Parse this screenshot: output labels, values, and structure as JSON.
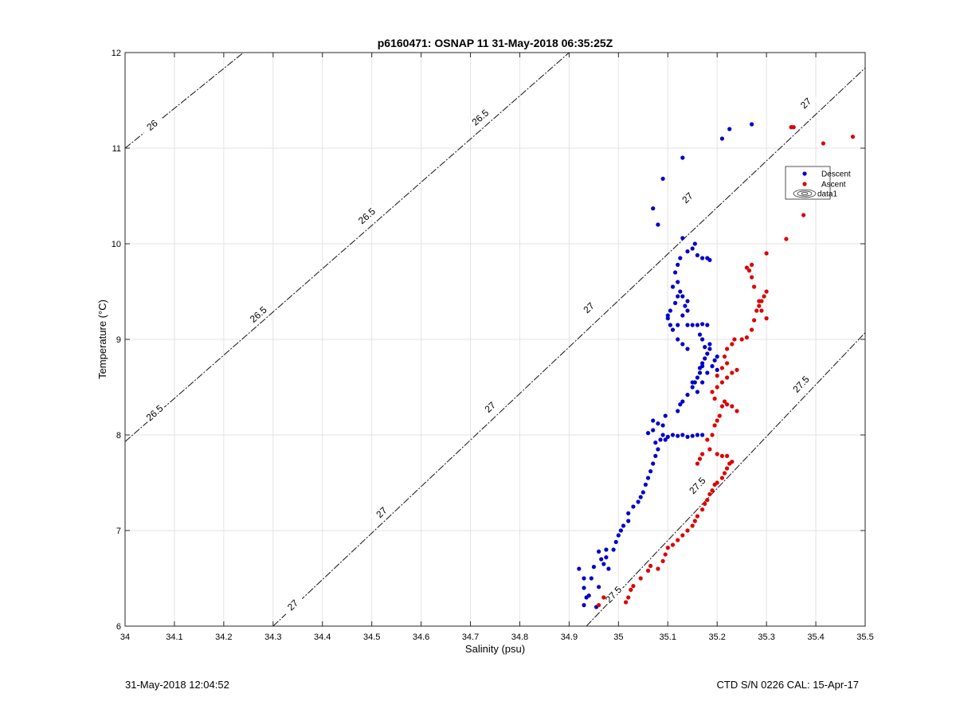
{
  "chart_data": {
    "type": "scatter",
    "title": "p6160471: OSNAP 11 31-May-2018 06:35:25Z",
    "xlabel": "Salinity (psu)",
    "ylabel": "Temperature (°C)",
    "xlim": [
      34,
      35.5
    ],
    "ylim": [
      6,
      12
    ],
    "grid": true,
    "x_ticks": [
      "34",
      "34.1",
      "34.2",
      "34.3",
      "34.4",
      "34.5",
      "34.6",
      "34.7",
      "34.8",
      "34.9",
      "35",
      "35.1",
      "35.2",
      "35.3",
      "35.4",
      "35.5"
    ],
    "y_ticks": [
      "6",
      "7",
      "8",
      "9",
      "10",
      "11",
      "12"
    ],
    "legend": {
      "placement": "top-right",
      "entries": [
        "Descent",
        "Ascent",
        "data1"
      ]
    },
    "contours": [
      {
        "label": "26",
        "points": [
          [
            34.0,
            11.0
          ],
          [
            34.24,
            12.0
          ]
        ],
        "label_positions": [
          [
            34.055,
            11.24
          ]
        ]
      },
      {
        "label": "26.5",
        "points": [
          [
            34.0,
            7.93
          ],
          [
            34.9,
            12.0
          ]
        ],
        "label_positions": [
          [
            34.06,
            8.23
          ],
          [
            34.27,
            9.26
          ],
          [
            34.49,
            10.29
          ],
          [
            34.72,
            11.32
          ]
        ]
      },
      {
        "label": "27",
        "points": [
          [
            34.3,
            6.0
          ],
          [
            35.5,
            11.84
          ]
        ],
        "label_positions": [
          [
            34.34,
            6.22
          ],
          [
            34.52,
            7.19
          ],
          [
            34.74,
            8.29
          ],
          [
            34.94,
            9.33
          ],
          [
            35.14,
            10.48
          ],
          [
            35.38,
            11.47
          ]
        ]
      },
      {
        "label": "27.5",
        "points": [
          [
            34.935,
            6.0
          ],
          [
            35.5,
            9.07
          ]
        ],
        "label_positions": [
          [
            34.99,
            6.33
          ],
          [
            35.16,
            7.47
          ],
          [
            35.37,
            8.53
          ]
        ]
      }
    ],
    "series": [
      {
        "name": "Descent",
        "color": "#0000CC",
        "points": [
          [
            34.92,
            6.6
          ],
          [
            34.93,
            6.5
          ],
          [
            34.93,
            6.4
          ],
          [
            34.935,
            6.3
          ],
          [
            34.93,
            6.22
          ],
          [
            34.94,
            6.32
          ],
          [
            34.955,
            6.2
          ],
          [
            34.96,
            6.41
          ],
          [
            34.945,
            6.5
          ],
          [
            34.95,
            6.62
          ],
          [
            34.96,
            6.78
          ],
          [
            34.965,
            6.7
          ],
          [
            34.97,
            6.65
          ],
          [
            34.975,
            6.72
          ],
          [
            34.98,
            6.6
          ],
          [
            34.975,
            6.8
          ],
          [
            34.99,
            6.8
          ],
          [
            34.995,
            6.88
          ],
          [
            35.0,
            6.95
          ],
          [
            35.005,
            7.0
          ],
          [
            35.01,
            7.05
          ],
          [
            35.02,
            7.1
          ],
          [
            35.02,
            7.18
          ],
          [
            35.03,
            7.25
          ],
          [
            35.04,
            7.3
          ],
          [
            35.045,
            7.35
          ],
          [
            35.05,
            7.4
          ],
          [
            35.055,
            7.48
          ],
          [
            35.06,
            7.55
          ],
          [
            35.065,
            7.62
          ],
          [
            35.07,
            7.7
          ],
          [
            35.075,
            7.78
          ],
          [
            35.08,
            7.85
          ],
          [
            35.085,
            7.95
          ],
          [
            35.09,
            8.0
          ],
          [
            35.095,
            7.95
          ],
          [
            35.1,
            7.98
          ],
          [
            35.11,
            8.0
          ],
          [
            35.12,
            7.99
          ],
          [
            35.13,
            8.0
          ],
          [
            35.14,
            7.98
          ],
          [
            35.15,
            7.99
          ],
          [
            35.16,
            8.0
          ],
          [
            35.17,
            8.0
          ],
          [
            35.075,
            7.92
          ],
          [
            35.07,
            8.05
          ],
          [
            35.07,
            8.15
          ],
          [
            35.08,
            8.12
          ],
          [
            35.06,
            8.02
          ],
          [
            35.09,
            8.1
          ],
          [
            35.095,
            8.2
          ],
          [
            35.12,
            8.25
          ],
          [
            35.125,
            8.32
          ],
          [
            35.13,
            8.35
          ],
          [
            35.14,
            8.42
          ],
          [
            35.15,
            8.5
          ],
          [
            35.155,
            8.55
          ],
          [
            35.16,
            8.6
          ],
          [
            35.165,
            8.7
          ],
          [
            35.17,
            8.75
          ],
          [
            35.175,
            8.8
          ],
          [
            35.18,
            8.85
          ],
          [
            35.185,
            8.9
          ],
          [
            35.19,
            8.72
          ],
          [
            35.195,
            8.78
          ],
          [
            35.2,
            8.82
          ],
          [
            35.2,
            8.68
          ],
          [
            35.18,
            8.65
          ],
          [
            35.17,
            8.72
          ],
          [
            35.165,
            8.65
          ],
          [
            35.175,
            8.92
          ],
          [
            35.185,
            8.95
          ],
          [
            35.16,
            8.45
          ],
          [
            35.17,
            8.55
          ],
          [
            35.15,
            8.55
          ],
          [
            35.14,
            8.9
          ],
          [
            35.13,
            8.95
          ],
          [
            35.12,
            9.0
          ],
          [
            35.11,
            9.1
          ],
          [
            35.12,
            9.15
          ],
          [
            35.14,
            9.15
          ],
          [
            35.15,
            9.15
          ],
          [
            35.16,
            9.15
          ],
          [
            35.17,
            9.16
          ],
          [
            35.18,
            9.15
          ],
          [
            35.1,
            9.25
          ],
          [
            35.105,
            9.3
          ],
          [
            35.115,
            9.38
          ],
          [
            35.12,
            9.45
          ],
          [
            35.125,
            9.5
          ],
          [
            35.13,
            9.45
          ],
          [
            35.135,
            9.35
          ],
          [
            35.14,
            9.4
          ],
          [
            35.11,
            9.55
          ],
          [
            35.12,
            9.6
          ],
          [
            35.115,
            9.7
          ],
          [
            35.12,
            9.78
          ],
          [
            35.125,
            9.85
          ],
          [
            35.14,
            9.92
          ],
          [
            35.15,
            9.95
          ],
          [
            35.16,
            9.88
          ],
          [
            35.17,
            9.85
          ],
          [
            35.18,
            9.85
          ],
          [
            35.185,
            9.83
          ],
          [
            35.155,
            10.0
          ],
          [
            35.13,
            10.06
          ],
          [
            35.1,
            9.22
          ],
          [
            35.105,
            9.15
          ],
          [
            35.13,
            9.25
          ],
          [
            35.14,
            9.3
          ],
          [
            35.165,
            9.05
          ],
          [
            35.17,
            9.0
          ],
          [
            35.08,
            10.2
          ],
          [
            35.07,
            10.37
          ],
          [
            35.09,
            10.68
          ],
          [
            35.13,
            10.9
          ],
          [
            35.21,
            11.1
          ],
          [
            35.225,
            11.2
          ],
          [
            35.27,
            11.25
          ]
        ]
      },
      {
        "name": "Ascent",
        "color": "#DD0000",
        "points": [
          [
            34.96,
            6.22
          ],
          [
            34.97,
            6.3
          ],
          [
            35.015,
            6.25
          ],
          [
            35.02,
            6.3
          ],
          [
            35.025,
            6.38
          ],
          [
            35.03,
            6.42
          ],
          [
            35.045,
            6.5
          ],
          [
            35.06,
            6.58
          ],
          [
            35.065,
            6.63
          ],
          [
            35.08,
            6.6
          ],
          [
            35.09,
            6.68
          ],
          [
            35.095,
            6.75
          ],
          [
            35.1,
            6.82
          ],
          [
            35.11,
            6.85
          ],
          [
            35.12,
            6.9
          ],
          [
            35.13,
            6.95
          ],
          [
            35.14,
            7.0
          ],
          [
            35.15,
            7.05
          ],
          [
            35.155,
            7.1
          ],
          [
            35.16,
            7.15
          ],
          [
            35.17,
            7.22
          ],
          [
            35.175,
            7.28
          ],
          [
            35.18,
            7.32
          ],
          [
            35.185,
            7.38
          ],
          [
            35.19,
            7.42
          ],
          [
            35.195,
            7.48
          ],
          [
            35.2,
            7.5
          ],
          [
            35.21,
            7.55
          ],
          [
            35.215,
            7.6
          ],
          [
            35.22,
            7.65
          ],
          [
            35.225,
            7.7
          ],
          [
            35.23,
            7.72
          ],
          [
            35.16,
            7.7
          ],
          [
            35.165,
            7.75
          ],
          [
            35.17,
            7.8
          ],
          [
            35.185,
            7.85
          ],
          [
            35.2,
            7.8
          ],
          [
            35.21,
            7.78
          ],
          [
            35.22,
            7.78
          ],
          [
            35.18,
            7.95
          ],
          [
            35.19,
            8.0
          ],
          [
            35.195,
            8.1
          ],
          [
            35.2,
            8.15
          ],
          [
            35.205,
            8.2
          ],
          [
            35.21,
            8.3
          ],
          [
            35.215,
            8.35
          ],
          [
            35.22,
            8.32
          ],
          [
            35.23,
            8.3
          ],
          [
            35.24,
            8.25
          ],
          [
            35.195,
            8.38
          ],
          [
            35.19,
            8.45
          ],
          [
            35.2,
            8.5
          ],
          [
            35.21,
            8.55
          ],
          [
            35.22,
            8.6
          ],
          [
            35.23,
            8.65
          ],
          [
            35.24,
            8.68
          ],
          [
            35.2,
            8.62
          ],
          [
            35.21,
            8.7
          ],
          [
            35.22,
            8.75
          ],
          [
            35.215,
            8.82
          ],
          [
            35.22,
            8.9
          ],
          [
            35.23,
            8.95
          ],
          [
            35.235,
            9.0
          ],
          [
            35.25,
            9.0
          ],
          [
            35.26,
            9.02
          ],
          [
            35.27,
            9.1
          ],
          [
            35.275,
            9.2
          ],
          [
            35.28,
            9.3
          ],
          [
            35.285,
            9.35
          ],
          [
            35.29,
            9.4
          ],
          [
            35.295,
            9.45
          ],
          [
            35.3,
            9.5
          ],
          [
            35.29,
            9.3
          ],
          [
            35.3,
            9.22
          ],
          [
            35.285,
            9.4
          ],
          [
            35.275,
            9.55
          ],
          [
            35.27,
            9.65
          ],
          [
            35.265,
            9.72
          ],
          [
            35.26,
            9.75
          ],
          [
            35.27,
            9.78
          ],
          [
            35.3,
            9.9
          ],
          [
            35.34,
            10.05
          ],
          [
            35.375,
            10.3
          ],
          [
            35.35,
            11.22
          ],
          [
            35.355,
            11.22
          ],
          [
            35.415,
            11.05
          ],
          [
            35.475,
            11.12
          ]
        ]
      }
    ]
  },
  "footer": {
    "left": "31-May-2018 12:04:52",
    "right": "CTD S/N 0226  CAL: 15-Apr-17"
  }
}
